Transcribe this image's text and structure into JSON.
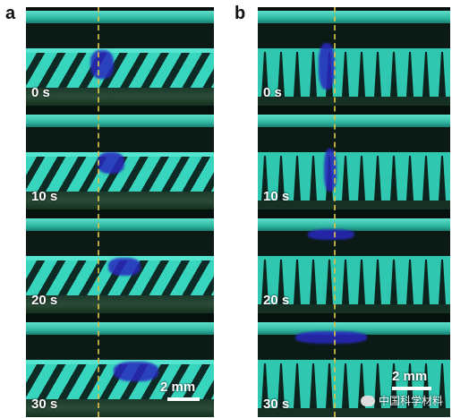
{
  "panels": [
    {
      "letter": "a",
      "times": [
        "0 s",
        "10 s",
        "20 s",
        "30 s"
      ],
      "scale": "2 mm"
    },
    {
      "letter": "b",
      "times": [
        "0 s",
        "10 s",
        "20 s",
        "30 s"
      ],
      "scale": "2 mm"
    }
  ],
  "watermark": "中国科学材料",
  "colors": {
    "structure": "#37d4be",
    "droplet": "#2828be",
    "dashed_line": "#d9c14a"
  }
}
